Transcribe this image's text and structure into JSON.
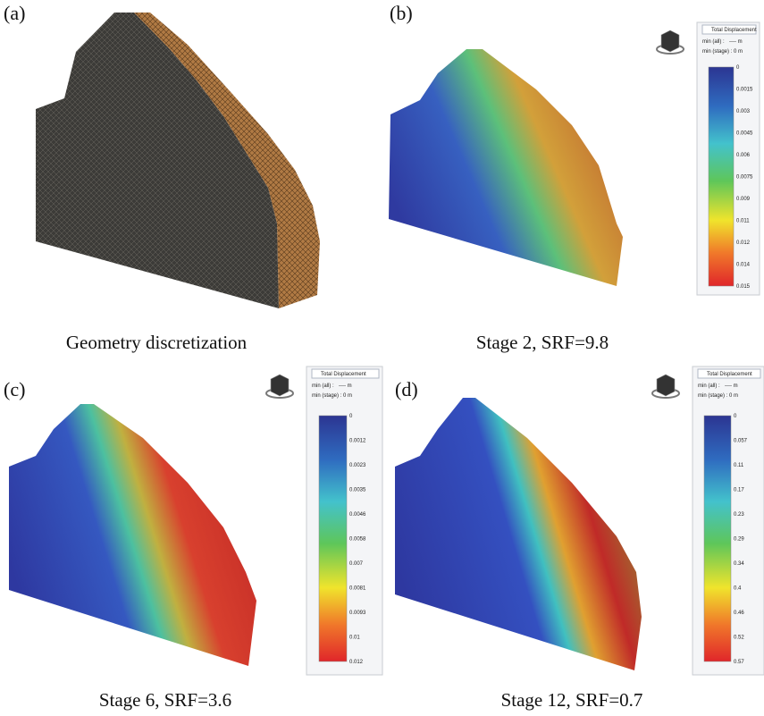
{
  "panels": [
    {
      "label": "(a)",
      "caption": "Geometry discretization"
    },
    {
      "label": "(b)",
      "caption": "Stage 2, SRF=9.8",
      "legend": {
        "title": "Total Displacement",
        "min_all": "min (all) :",
        "min_all_value": "---- m",
        "min_stage": "min (stage) : 0 m",
        "ticks": [
          "0",
          "0.0015",
          "0.003",
          "0.0045",
          "0.006",
          "0.0075",
          "0.009",
          "0.011",
          "0.012",
          "0.014",
          "0.015"
        ]
      }
    },
    {
      "label": "(c)",
      "caption": "Stage 6, SRF=3.6",
      "legend": {
        "title": "Total Displacement",
        "min_all": "min (all) :",
        "min_all_value": "---- m",
        "min_stage": "min (stage) : 0 m",
        "ticks": [
          "0",
          "0.0012",
          "0.0023",
          "0.0035",
          "0.0046",
          "0.0058",
          "0.007",
          "0.0081",
          "0.0093",
          "0.01",
          "0.012"
        ]
      }
    },
    {
      "label": "(d)",
      "caption": "Stage 12, SRF=0.7",
      "legend": {
        "title": "Total Displacement",
        "min_all": "min (all) :",
        "min_all_value": "---- m",
        "min_stage": "min (stage) : 0 m",
        "ticks": [
          "0",
          "0.057",
          "0.11",
          "0.17",
          "0.23",
          "0.29",
          "0.34",
          "0.4",
          "0.46",
          "0.52",
          "0.57"
        ]
      }
    }
  ]
}
